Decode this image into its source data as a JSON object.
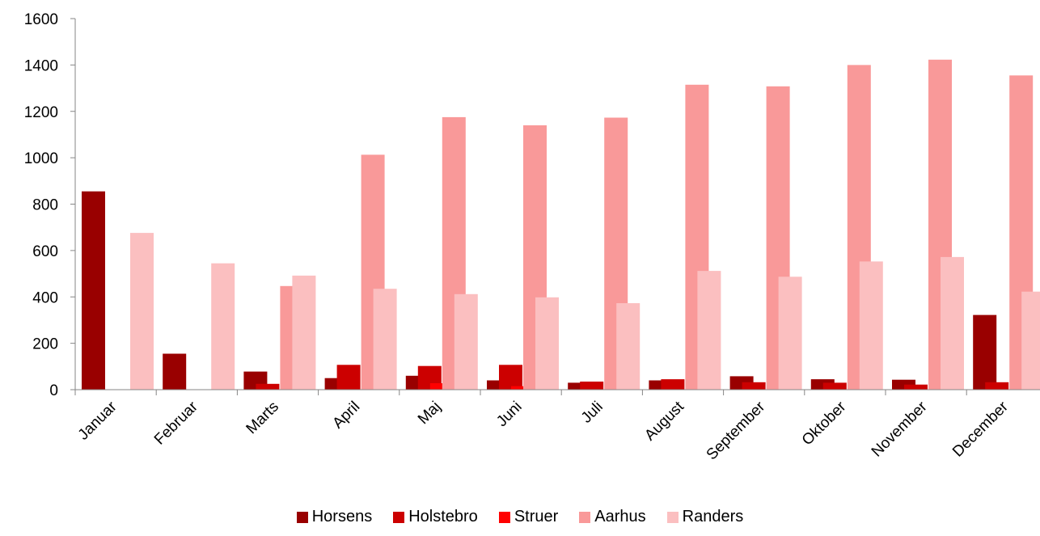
{
  "chart_data": {
    "type": "bar",
    "title": "",
    "xlabel": "",
    "ylabel": "",
    "ylim": [
      0,
      1600
    ],
    "yticks": [
      0,
      200,
      400,
      600,
      800,
      1000,
      1200,
      1400,
      1600
    ],
    "grid": false,
    "legend_position": "bottom",
    "categories": [
      "Januar",
      "Februar",
      "Marts",
      "April",
      "Maj",
      "Juni",
      "Juli",
      "August",
      "September",
      "Oktober",
      "November",
      "December"
    ],
    "series": [
      {
        "name": "Horsens",
        "color": "#990000",
        "values": [
          855,
          155,
          78,
          50,
          60,
          40,
          30,
          40,
          58,
          45,
          43,
          322
        ]
      },
      {
        "name": "Holstebro",
        "color": "#cc0000",
        "values": [
          0,
          0,
          25,
          107,
          102,
          107,
          35,
          45,
          32,
          30,
          22,
          32
        ]
      },
      {
        "name": "Struer",
        "color": "#ff0000",
        "values": [
          0,
          0,
          0,
          0,
          28,
          15,
          0,
          0,
          0,
          0,
          0,
          0
        ]
      },
      {
        "name": "Aarhus",
        "color": "#f99999",
        "values": [
          0,
          0,
          447,
          1013,
          1175,
          1140,
          1173,
          1315,
          1308,
          1400,
          1423,
          1355
        ]
      },
      {
        "name": "Randers",
        "color": "#fbbfc0",
        "values": [
          676,
          545,
          492,
          435,
          412,
          398,
          373,
          512,
          487,
          553,
          572,
          423
        ]
      }
    ]
  }
}
